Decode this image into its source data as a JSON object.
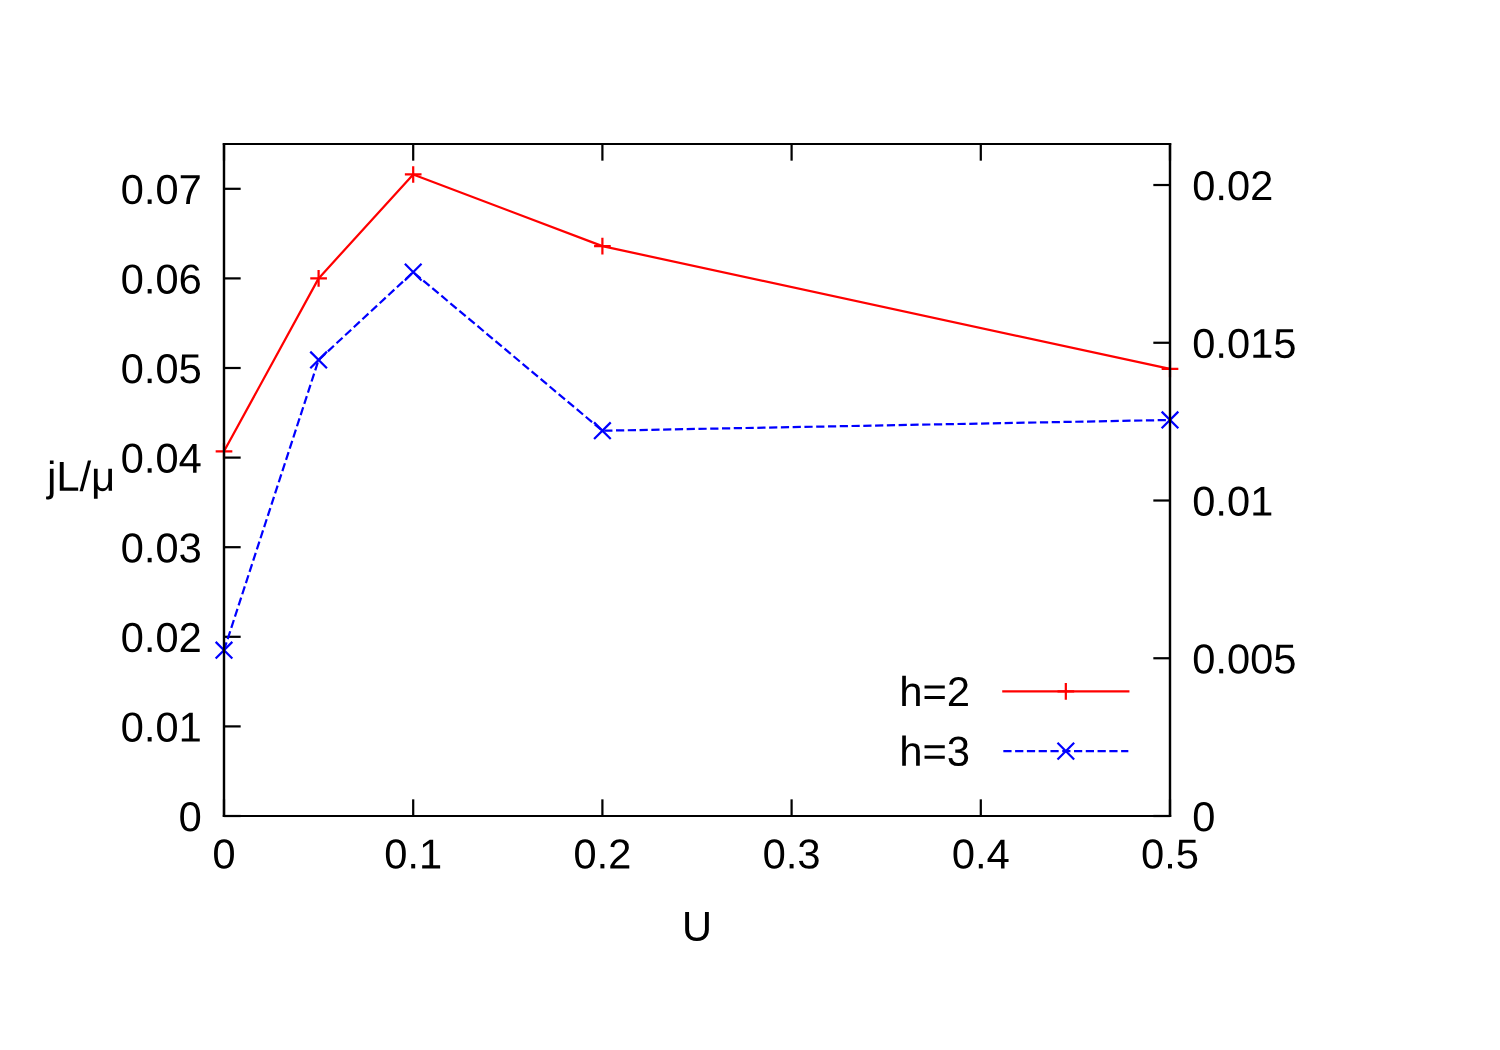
{
  "chart_data": {
    "type": "line",
    "xlabel": "U",
    "ylabel": "jL/μ",
    "x": [
      0,
      0.05,
      0.1,
      0.2,
      0.5
    ],
    "series": [
      {
        "name": "h=2",
        "color": "#ff0000",
        "values": [
          0.0407,
          0.06,
          0.0716,
          0.0636,
          0.0499
        ],
        "marker": "plus",
        "line_style": "solid"
      },
      {
        "name": "h=3",
        "color": "#0000ff",
        "values": [
          0.0185,
          0.0509,
          0.0607,
          0.043,
          0.0442
        ],
        "marker": "cross",
        "line_style": "dashed"
      }
    ],
    "xlim": [
      0,
      0.5
    ],
    "xticks": [
      0,
      0.1,
      0.2,
      0.3,
      0.4,
      0.5
    ],
    "ylim": [
      0,
      0.075
    ],
    "yticks": [
      0,
      0.01,
      0.02,
      0.03,
      0.04,
      0.05,
      0.06,
      0.07
    ],
    "y2lim": [
      0,
      0.0213
    ],
    "y2ticks": [
      0,
      0.005,
      0.01,
      0.015,
      0.02
    ],
    "grid": false,
    "legend": "bottom right"
  }
}
